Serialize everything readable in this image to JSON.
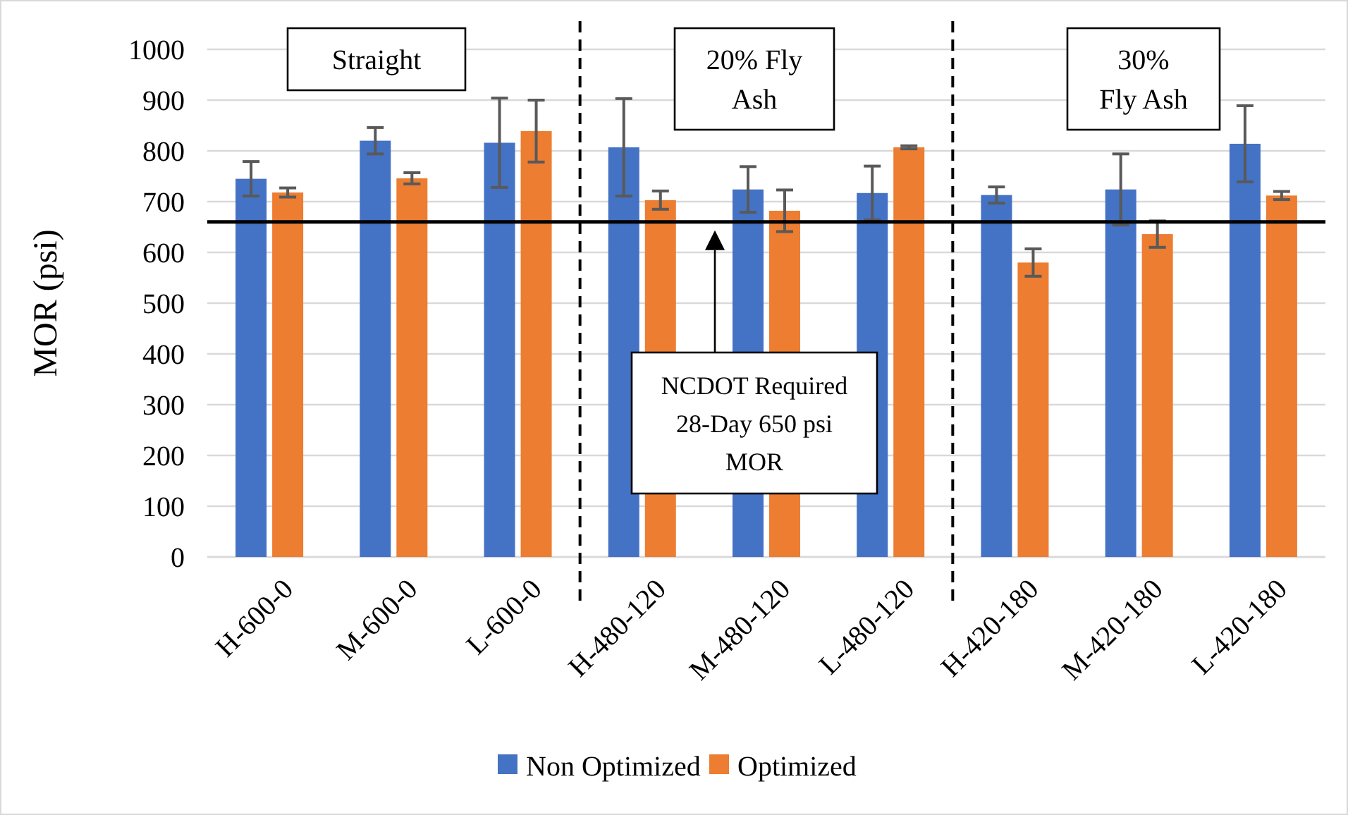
{
  "chart_data": {
    "type": "bar",
    "ylabel": "MOR (psi)",
    "categories": [
      "H-600-0",
      "M-600-0",
      "L-600-0",
      "H-480-120",
      "M-480-120",
      "L-480-120",
      "H-420-180",
      "M-420-180",
      "L-420-180"
    ],
    "series": [
      {
        "name": "Non Optimized",
        "color": "#4472c4",
        "values": [
          745,
          820,
          816,
          807,
          724,
          717,
          713,
          724,
          814
        ],
        "errors": [
          34,
          26,
          88,
          96,
          45,
          53,
          16,
          70,
          75
        ]
      },
      {
        "name": "Optimized",
        "color": "#ed7d31",
        "values": [
          718,
          746,
          839,
          703,
          682,
          807,
          580,
          636,
          712
        ],
        "errors": [
          9,
          11,
          61,
          18,
          41,
          3,
          27,
          26,
          8
        ]
      }
    ],
    "ylim": [
      0,
      1000
    ],
    "yticks": [
      0,
      100,
      200,
      300,
      400,
      500,
      600,
      700,
      800,
      900,
      1000
    ],
    "grid": "y",
    "legend": "bottom",
    "ref_lines": [
      {
        "axis": "y",
        "value": 660,
        "color": "#000000",
        "line_style": "solid"
      }
    ],
    "annotations": [
      "Straight",
      "20% Fly Ash",
      "30% Fly Ash",
      "NCDOT Required 28-Day 650 psi MOR"
    ]
  }
}
